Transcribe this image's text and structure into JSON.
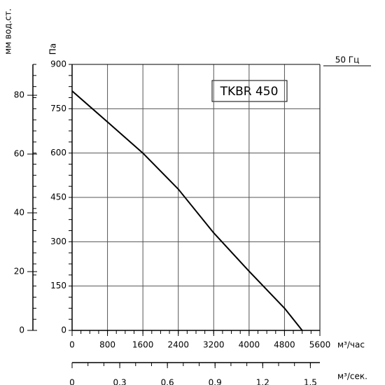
{
  "chart_data": {
    "type": "line",
    "title": "TKBR 450",
    "annotation": "50 Гц",
    "ylabel": "Па",
    "y2label": "мм вод.ст.",
    "xlabel": "м³/час",
    "x2label": "м³/сек.",
    "x": [
      0,
      800,
      1600,
      2400,
      3200,
      4000,
      4800,
      5200
    ],
    "series": [
      {
        "color": "#000000",
        "values": [
          810,
          705,
          600,
          478,
          330,
          200,
          75,
          0
        ]
      }
    ],
    "xlim": [
      0,
      5600
    ],
    "xticks": [
      0,
      800,
      1600,
      2400,
      3200,
      4000,
      4800,
      5600
    ],
    "ylim": [
      0,
      900
    ],
    "yticks": [
      0,
      150,
      300,
      450,
      600,
      750,
      900
    ],
    "y2lim": [
      0,
      90.5
    ],
    "y2ticks": [
      0,
      20,
      40,
      60,
      80
    ],
    "x2lim": [
      0,
      1.56
    ],
    "x2ticks": [
      0,
      0.3,
      0.6,
      0.9,
      1.2,
      1.5
    ],
    "grid": true
  }
}
